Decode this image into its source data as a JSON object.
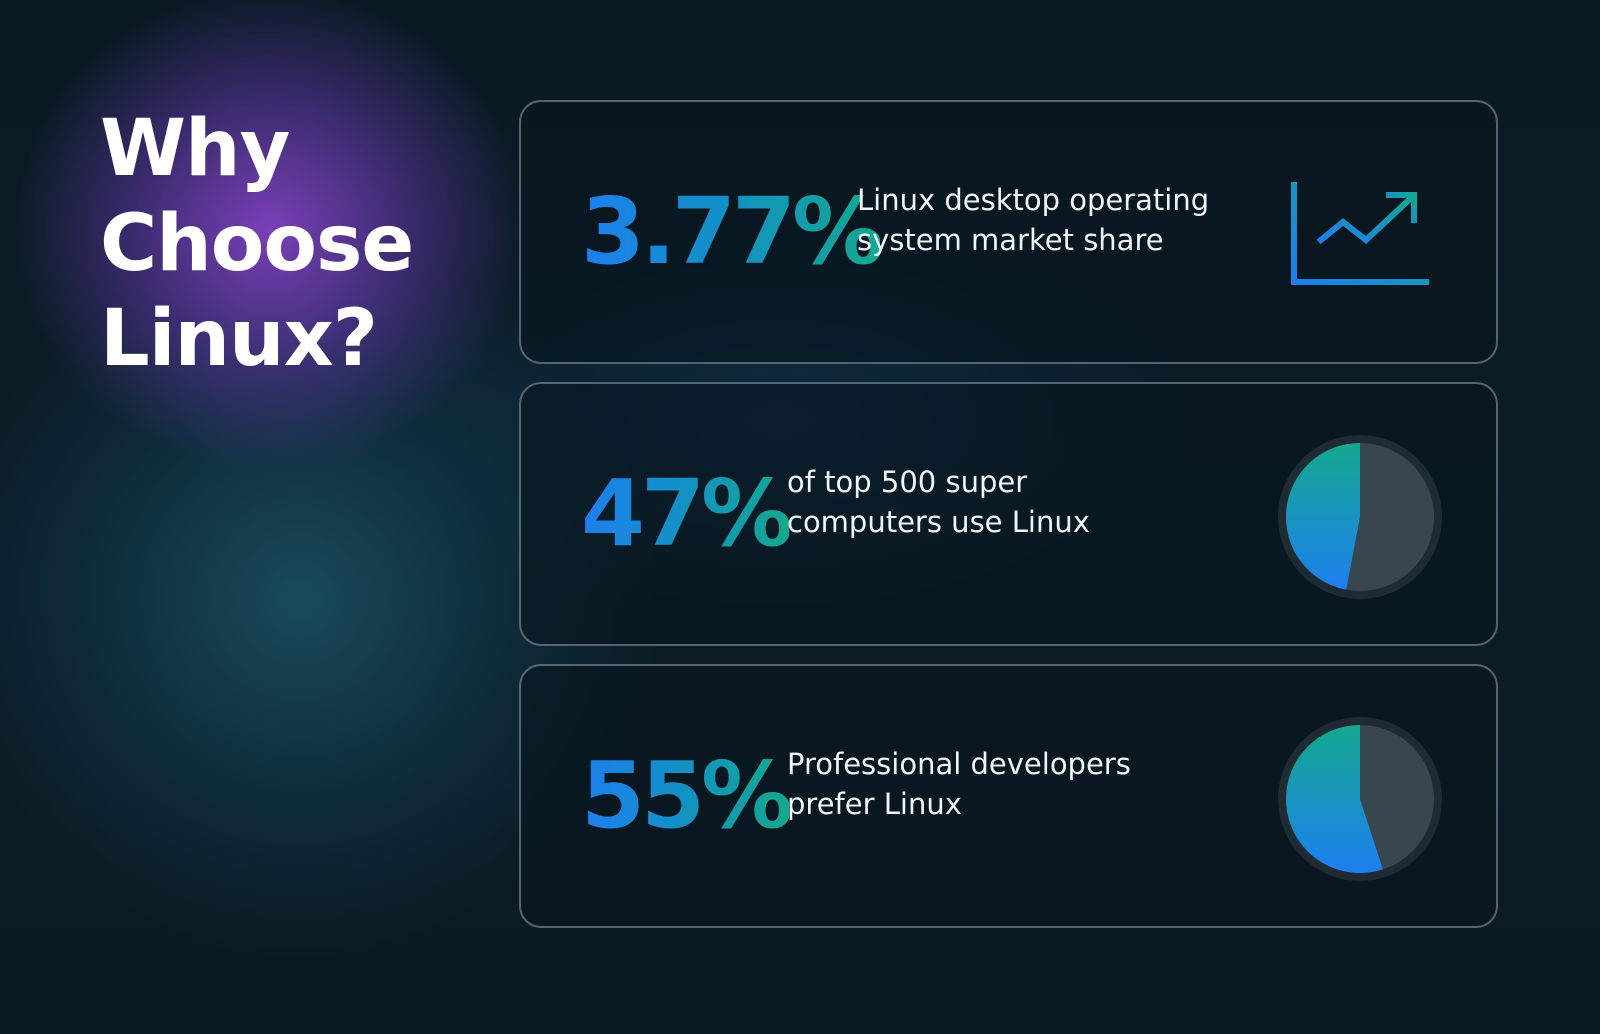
{
  "heading": {
    "line1": "Why",
    "line2": "Choose",
    "line3": "Linux?"
  },
  "stats": [
    {
      "value": "3.77%",
      "description": "Linux desktop operating system market share",
      "icon": "trending-up-chart-icon"
    },
    {
      "value": "47%",
      "description": "of top 500 super computers use Linux",
      "icon": "pie-chart-icon",
      "fraction": 0.47
    },
    {
      "value": "55%",
      "description": "Professional developers prefer Linux",
      "icon": "pie-chart-icon",
      "fraction": 0.55
    }
  ],
  "colors": {
    "accent_blue": "#1d7ff0",
    "accent_teal": "#14a88f",
    "pie_track": "#38474f",
    "pie_ring": "#1e2b33",
    "background": "#0b1b25"
  }
}
